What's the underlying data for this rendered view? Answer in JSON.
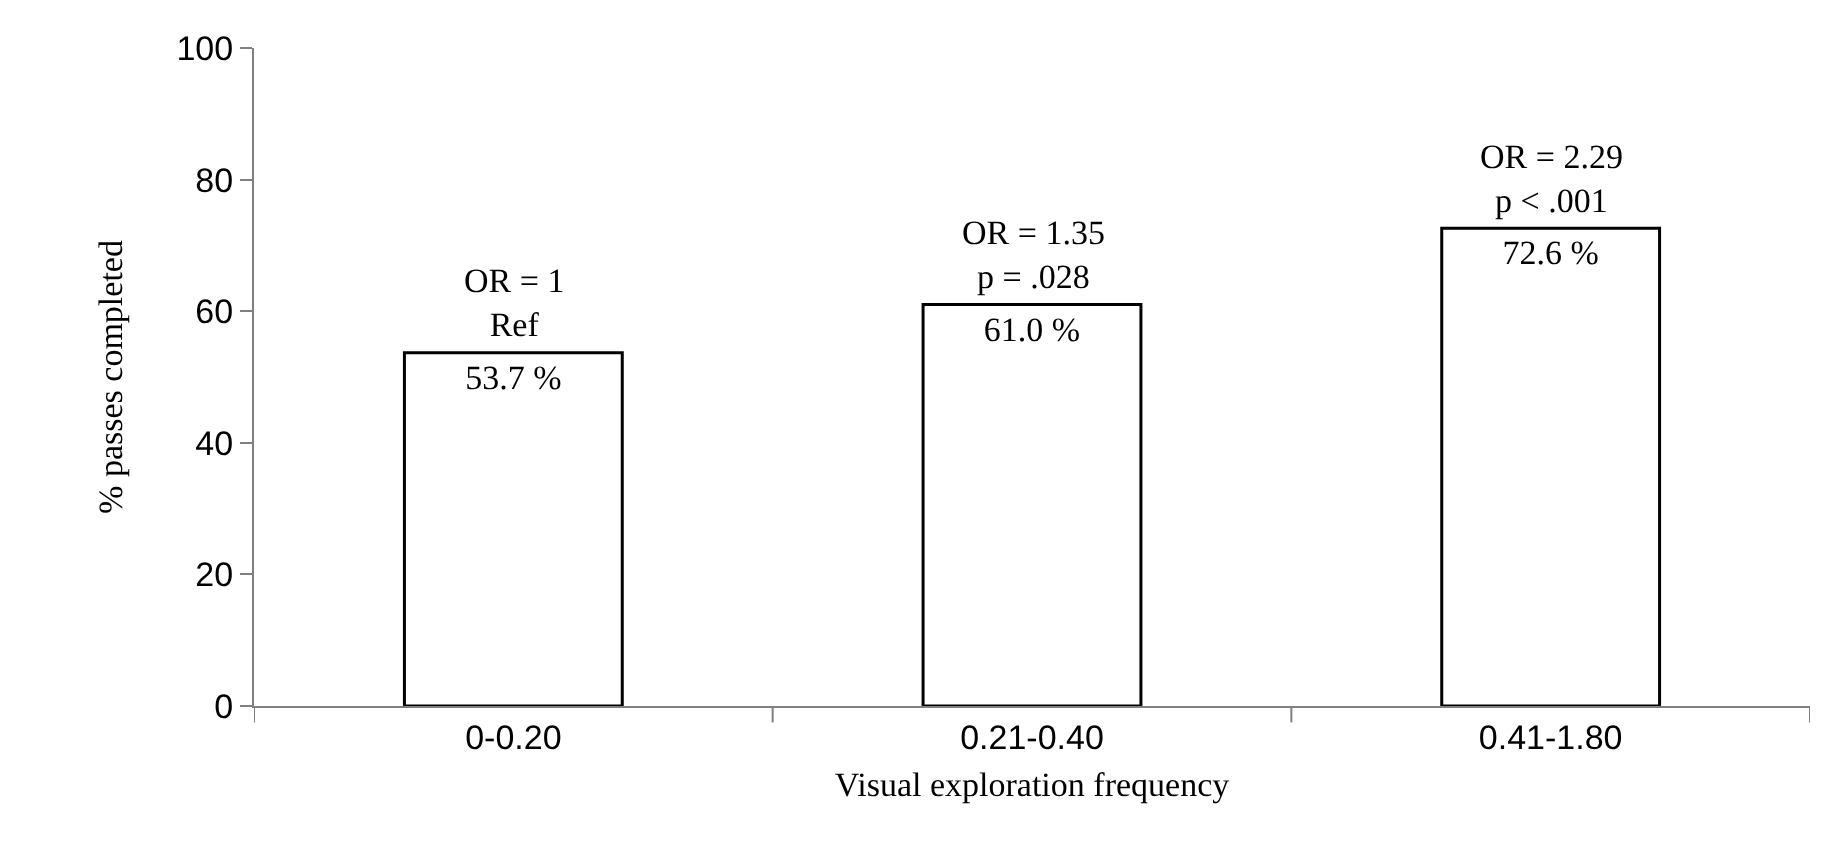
{
  "chart_data": {
    "type": "bar",
    "xlabel": "Visual exploration frequency",
    "ylabel": "% passes completed",
    "categories": [
      "0-0.20",
      "0.21-0.40",
      "0.41-1.80"
    ],
    "values": [
      53.7,
      61.0,
      72.6
    ],
    "color": "#ffffff",
    "value_labels": [
      "53.7 %",
      "61.0 %",
      "72.6 %"
    ],
    "ylim": [
      0,
      100
    ],
    "yticks": [
      0,
      20,
      40,
      60,
      80,
      100
    ],
    "grid": false,
    "legend": false,
    "annotations": [
      {
        "text": "OR = 1\nRef",
        "x": "0-0.20",
        "y": 53.7
      },
      {
        "text": "OR = 1.35\np = .028",
        "x": "0.21-0.40",
        "y": 61.0
      },
      {
        "text": "OR = 2.29\np < .001",
        "x": "0.41-1.80",
        "y": 72.6
      }
    ]
  }
}
